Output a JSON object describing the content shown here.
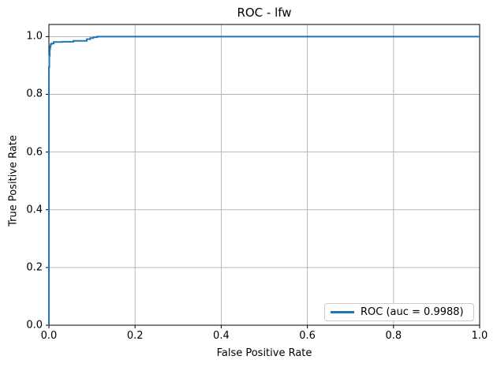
{
  "figure": {
    "background": "#ffffff",
    "text_color": "#000000",
    "spine_color": "#000000"
  },
  "chart_data": {
    "type": "line",
    "title": "ROC - lfw",
    "xlabel": "False Positive Rate",
    "ylabel": "True Positive Rate",
    "xlim": [
      0.0,
      1.0
    ],
    "ylim": [
      0.0,
      1.042
    ],
    "grid": true,
    "grid_color": "#b0b0b0",
    "x_ticks": {
      "values": [
        0.0,
        0.2,
        0.4,
        0.6,
        0.8,
        1.0
      ],
      "labels": [
        "0.0",
        "0.2",
        "0.4",
        "0.6",
        "0.8",
        "1.0"
      ]
    },
    "y_ticks": {
      "values": [
        0.0,
        0.2,
        0.4,
        0.6,
        0.8,
        1.0
      ],
      "labels": [
        "0.0",
        "0.2",
        "0.4",
        "0.6",
        "0.8",
        "1.0"
      ]
    },
    "legend": {
      "position": "lower right",
      "entries": [
        {
          "label": "ROC (auc = 0.9988)",
          "color": "#1f77b4"
        }
      ]
    },
    "series": [
      {
        "name": "ROC",
        "auc": 0.9988,
        "color": "#1f77b4",
        "line_width": 2,
        "points": [
          [
            0.0,
            0.0
          ],
          [
            0.0,
            0.894
          ],
          [
            0.001,
            0.894
          ],
          [
            0.001,
            0.934
          ],
          [
            0.002,
            0.934
          ],
          [
            0.002,
            0.956
          ],
          [
            0.003,
            0.956
          ],
          [
            0.003,
            0.966
          ],
          [
            0.004,
            0.966
          ],
          [
            0.004,
            0.973
          ],
          [
            0.006,
            0.973
          ],
          [
            0.006,
            0.976
          ],
          [
            0.011,
            0.976
          ],
          [
            0.011,
            0.981
          ],
          [
            0.03,
            0.981
          ],
          [
            0.03,
            0.982
          ],
          [
            0.057,
            0.982
          ],
          [
            0.057,
            0.985
          ],
          [
            0.088,
            0.985
          ],
          [
            0.088,
            0.991
          ],
          [
            0.096,
            0.991
          ],
          [
            0.096,
            0.995
          ],
          [
            0.103,
            0.995
          ],
          [
            0.103,
            0.998
          ],
          [
            0.112,
            0.998
          ],
          [
            0.112,
            1.0
          ],
          [
            1.0,
            1.0
          ]
        ]
      }
    ]
  }
}
